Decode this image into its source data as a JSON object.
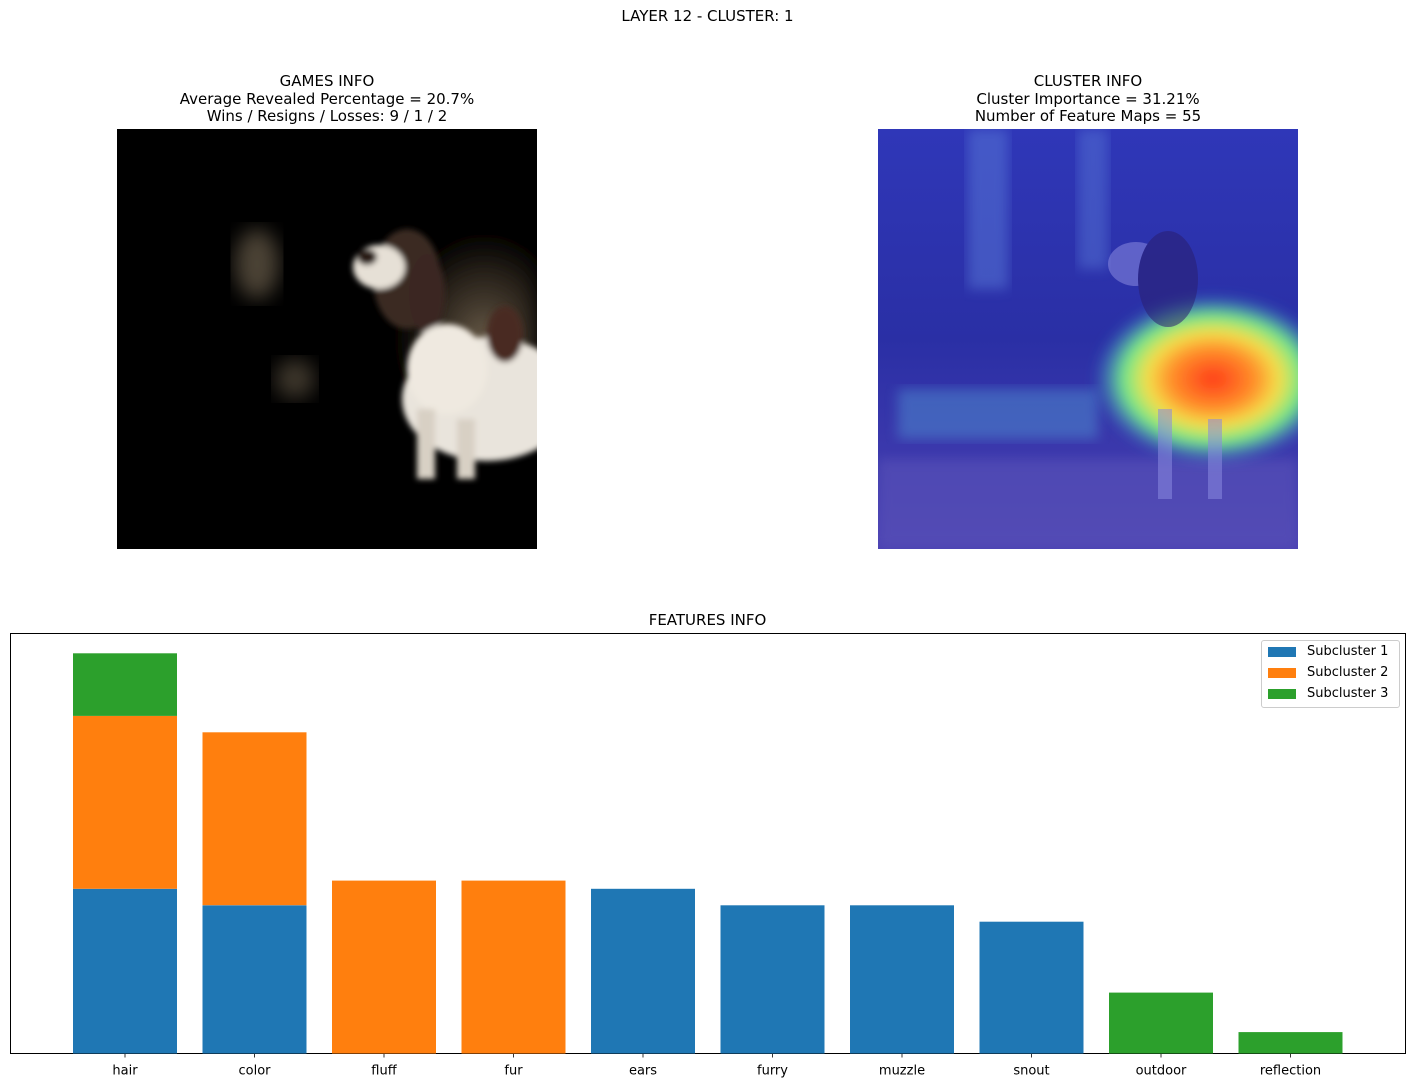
{
  "suptitle": "LAYER 12 - CLUSTER: 1",
  "games_panel": {
    "title_lines": [
      "GAMES INFO",
      "Average Revealed Percentage = 20.7%",
      "Wins / Resigns / Losses: 9 / 1 / 2"
    ]
  },
  "cluster_panel": {
    "title_lines": [
      "CLUSTER INFO",
      "Cluster Importance = 31.21%",
      "Number of Feature Maps = 55"
    ]
  },
  "chart_data": {
    "type": "bar",
    "stacked": true,
    "title": "FEATURES INFO",
    "xlabel": "",
    "ylabel": "",
    "categories": [
      "hair",
      "color",
      "fluff",
      "fur",
      "ears",
      "furry",
      "muzzle",
      "snout",
      "outdoor",
      "reflection"
    ],
    "series": [
      {
        "name": "Subcluster 1",
        "color": "#1f77b4",
        "values": [
          10,
          9,
          0,
          0,
          10,
          9,
          9,
          8,
          0,
          0
        ]
      },
      {
        "name": "Subcluster 2",
        "color": "#ff7f0e",
        "values": [
          10.5,
          10.5,
          10.5,
          10.5,
          0,
          0,
          0,
          0,
          0,
          0
        ]
      },
      {
        "name": "Subcluster 3",
        "color": "#2ca02c",
        "values": [
          3.8,
          0,
          0,
          0,
          0,
          0,
          0,
          0,
          3.7,
          1.3
        ]
      }
    ],
    "ylim": [
      0,
      25.5
    ],
    "y_ticks_shown": false,
    "legend_position": "top-right",
    "grid": false
  }
}
